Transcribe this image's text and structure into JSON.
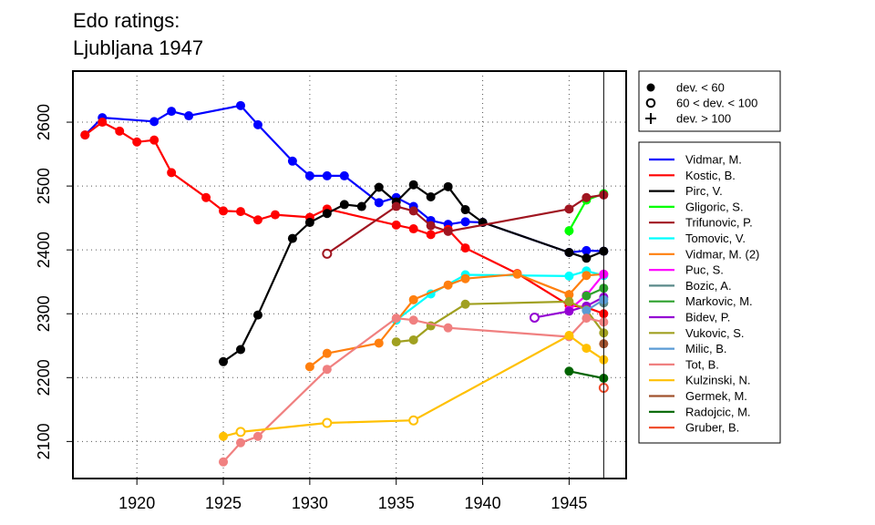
{
  "chart_data": {
    "type": "line",
    "title_lines": [
      "Edo ratings:",
      "Ljubljana 1947"
    ],
    "xlabel": "",
    "ylabel": "",
    "xlim": [
      1916.3,
      1948.3
    ],
    "ylim": [
      2042,
      2680
    ],
    "x_ticks": [
      1920,
      1925,
      1930,
      1935,
      1940,
      1945
    ],
    "y_ticks": [
      2100,
      2200,
      2300,
      2400,
      2500,
      2600
    ],
    "vline_x": 1947,
    "grid": "dotted",
    "marker_legend": [
      {
        "label": "dev. < 60",
        "symbol": "filled"
      },
      {
        "label": "60 < dev. < 100",
        "symbol": "open"
      },
      {
        "label": "dev. > 100",
        "symbol": "plus"
      }
    ],
    "series": [
      {
        "name": "Vidmar, M.",
        "color": "#0000ff",
        "points": [
          [
            1917,
            2580,
            "f"
          ],
          [
            1918,
            2607,
            "f"
          ],
          [
            1921,
            2601,
            "f"
          ],
          [
            1922,
            2617,
            "f"
          ],
          [
            1923,
            2610,
            "f"
          ],
          [
            1926,
            2626,
            "f"
          ],
          [
            1927,
            2596,
            "f"
          ],
          [
            1929,
            2539,
            "f"
          ],
          [
            1930,
            2516,
            "f"
          ],
          [
            1931,
            2516,
            "f"
          ],
          [
            1932,
            2516,
            "f"
          ],
          [
            1934,
            2474,
            "f"
          ],
          [
            1935,
            2482,
            "f"
          ],
          [
            1936,
            2468,
            "f"
          ],
          [
            1937,
            2446,
            "f"
          ],
          [
            1938,
            2440,
            "f"
          ],
          [
            1939,
            2444,
            "f"
          ],
          [
            1940,
            2443,
            "f"
          ],
          [
            1945,
            2396,
            "f"
          ],
          [
            1946,
            2399,
            "f"
          ],
          [
            1947,
            2398,
            "f"
          ]
        ]
      },
      {
        "name": "Kostic, B.",
        "color": "#ff0000",
        "points": [
          [
            1917,
            2580,
            "f"
          ],
          [
            1918,
            2600,
            "f"
          ],
          [
            1919,
            2586,
            "f"
          ],
          [
            1920,
            2569,
            "f"
          ],
          [
            1921,
            2572,
            "f"
          ],
          [
            1922,
            2521,
            "f"
          ],
          [
            1924,
            2482,
            "f"
          ],
          [
            1925,
            2461,
            "f"
          ],
          [
            1926,
            2460,
            "f"
          ],
          [
            1927,
            2447,
            "f"
          ],
          [
            1928,
            2455,
            "f"
          ],
          [
            1930,
            2451,
            "f"
          ],
          [
            1931,
            2464,
            "f"
          ],
          [
            1935,
            2439,
            "f"
          ],
          [
            1936,
            2433,
            "f"
          ],
          [
            1937,
            2424,
            "f"
          ],
          [
            1938,
            2432,
            "f"
          ],
          [
            1939,
            2403,
            "f"
          ],
          [
            1942,
            2363,
            "f"
          ],
          [
            1945,
            2313,
            "f"
          ],
          [
            1946,
            2310,
            "f"
          ],
          [
            1947,
            2300,
            "f"
          ]
        ]
      },
      {
        "name": "Pirc, V.",
        "color": "#000000",
        "points": [
          [
            1925,
            2225,
            "f"
          ],
          [
            1926,
            2244,
            "f"
          ],
          [
            1927,
            2298,
            "f"
          ],
          [
            1929,
            2418,
            "f"
          ],
          [
            1930,
            2443,
            "f"
          ],
          [
            1931,
            2457,
            "f"
          ],
          [
            1932,
            2471,
            "f"
          ],
          [
            1933,
            2468,
            "f"
          ],
          [
            1934,
            2498,
            "f"
          ],
          [
            1935,
            2475,
            "f"
          ],
          [
            1936,
            2502,
            "f"
          ],
          [
            1937,
            2483,
            "f"
          ],
          [
            1938,
            2499,
            "f"
          ],
          [
            1939,
            2463,
            "f"
          ],
          [
            1940,
            2443,
            "f"
          ],
          [
            1945,
            2396,
            "f"
          ],
          [
            1946,
            2387,
            "f"
          ],
          [
            1947,
            2398,
            "f"
          ]
        ]
      },
      {
        "name": "Gligoric, S.",
        "color": "#00ff00",
        "points": [
          [
            1945,
            2430,
            "f"
          ],
          [
            1946,
            2478,
            "f"
          ],
          [
            1947,
            2488,
            "f"
          ]
        ]
      },
      {
        "name": "Trifunovic, P.",
        "color": "#a01520",
        "points": [
          [
            1931,
            2394,
            "o"
          ],
          [
            1935,
            2468,
            "f"
          ],
          [
            1936,
            2461,
            "f"
          ],
          [
            1937,
            2438,
            "f"
          ],
          [
            1938,
            2429,
            "f"
          ],
          [
            1945,
            2464,
            "f"
          ],
          [
            1946,
            2482,
            "f"
          ],
          [
            1947,
            2486,
            "f"
          ]
        ]
      },
      {
        "name": "Tomovic, V.",
        "color": "#00ffff",
        "points": [
          [
            1935,
            2290,
            "f"
          ],
          [
            1937,
            2331,
            "f"
          ],
          [
            1939,
            2361,
            "f"
          ],
          [
            1945,
            2359,
            "f"
          ],
          [
            1946,
            2367,
            "f"
          ],
          [
            1947,
            2360,
            "f"
          ]
        ]
      },
      {
        "name": "Vidmar, M. (2)",
        "color": "#ff7f0e",
        "points": [
          [
            1930,
            2217,
            "f"
          ],
          [
            1931,
            2238,
            "f"
          ],
          [
            1934,
            2254,
            "f"
          ],
          [
            1936,
            2322,
            "f"
          ],
          [
            1938,
            2345,
            "f"
          ],
          [
            1939,
            2355,
            "f"
          ],
          [
            1942,
            2362,
            "f"
          ],
          [
            1945,
            2330,
            "f"
          ],
          [
            1946,
            2360,
            "f"
          ],
          [
            1947,
            2362,
            "f"
          ]
        ]
      },
      {
        "name": "Puc, S.",
        "color": "#ff00ff",
        "points": [
          [
            1945,
            2306,
            "f"
          ],
          [
            1946,
            2329,
            "f"
          ],
          [
            1947,
            2362,
            "f"
          ]
        ]
      },
      {
        "name": "Bozic, A.",
        "color": "#5a8a8a",
        "points": [
          [
            1947,
            2317,
            "f"
          ]
        ]
      },
      {
        "name": "Markovic, M.",
        "color": "#2ca02c",
        "points": [
          [
            1946,
            2328,
            "f"
          ],
          [
            1947,
            2340,
            "f"
          ]
        ]
      },
      {
        "name": "Bidev, P.",
        "color": "#9400d3",
        "points": [
          [
            1943,
            2294,
            "o"
          ],
          [
            1945,
            2304,
            "f"
          ],
          [
            1946,
            2312,
            "f"
          ],
          [
            1947,
            2326,
            "f"
          ]
        ]
      },
      {
        "name": "Vukovic, S.",
        "color": "#a0a020",
        "points": [
          [
            1935,
            2256,
            "f"
          ],
          [
            1936,
            2259,
            "f"
          ],
          [
            1937,
            2281,
            "f"
          ],
          [
            1939,
            2315,
            "f"
          ],
          [
            1945,
            2319,
            "f"
          ],
          [
            1946,
            2306,
            "f"
          ],
          [
            1947,
            2270,
            "f"
          ]
        ]
      },
      {
        "name": "Milic, B.",
        "color": "#5a9bd5",
        "points": [
          [
            1946,
            2305,
            "f"
          ],
          [
            1947,
            2322,
            "f"
          ]
        ]
      },
      {
        "name": "Tot, B.",
        "color": "#f08080",
        "points": [
          [
            1925,
            2068,
            "f"
          ],
          [
            1926,
            2098,
            "f"
          ],
          [
            1927,
            2108,
            "f"
          ],
          [
            1931,
            2213,
            "f"
          ],
          [
            1935,
            2293,
            "f"
          ],
          [
            1936,
            2290,
            "f"
          ],
          [
            1938,
            2278,
            "f"
          ],
          [
            1945,
            2264,
            "f"
          ],
          [
            1946,
            2293,
            "f"
          ],
          [
            1947,
            2287,
            "f"
          ]
        ]
      },
      {
        "name": "Kulzinski, N.",
        "color": "#ffc000",
        "points": [
          [
            1925,
            2108,
            "f"
          ],
          [
            1926,
            2115,
            "o"
          ],
          [
            1931,
            2129,
            "o"
          ],
          [
            1936,
            2133,
            "o"
          ],
          [
            1945,
            2266,
            "f"
          ],
          [
            1946,
            2246,
            "f"
          ],
          [
            1947,
            2228,
            "f"
          ]
        ]
      },
      {
        "name": "Germek, M.",
        "color": "#a0522d",
        "points": [
          [
            1947,
            2253,
            "f"
          ]
        ]
      },
      {
        "name": "Radojcic, M.",
        "color": "#006400",
        "points": [
          [
            1945,
            2210,
            "f"
          ],
          [
            1947,
            2199,
            "f"
          ]
        ]
      },
      {
        "name": "Gruber, B.",
        "color": "#f05030",
        "points": [
          [
            1947,
            2184,
            "o"
          ]
        ]
      }
    ]
  }
}
